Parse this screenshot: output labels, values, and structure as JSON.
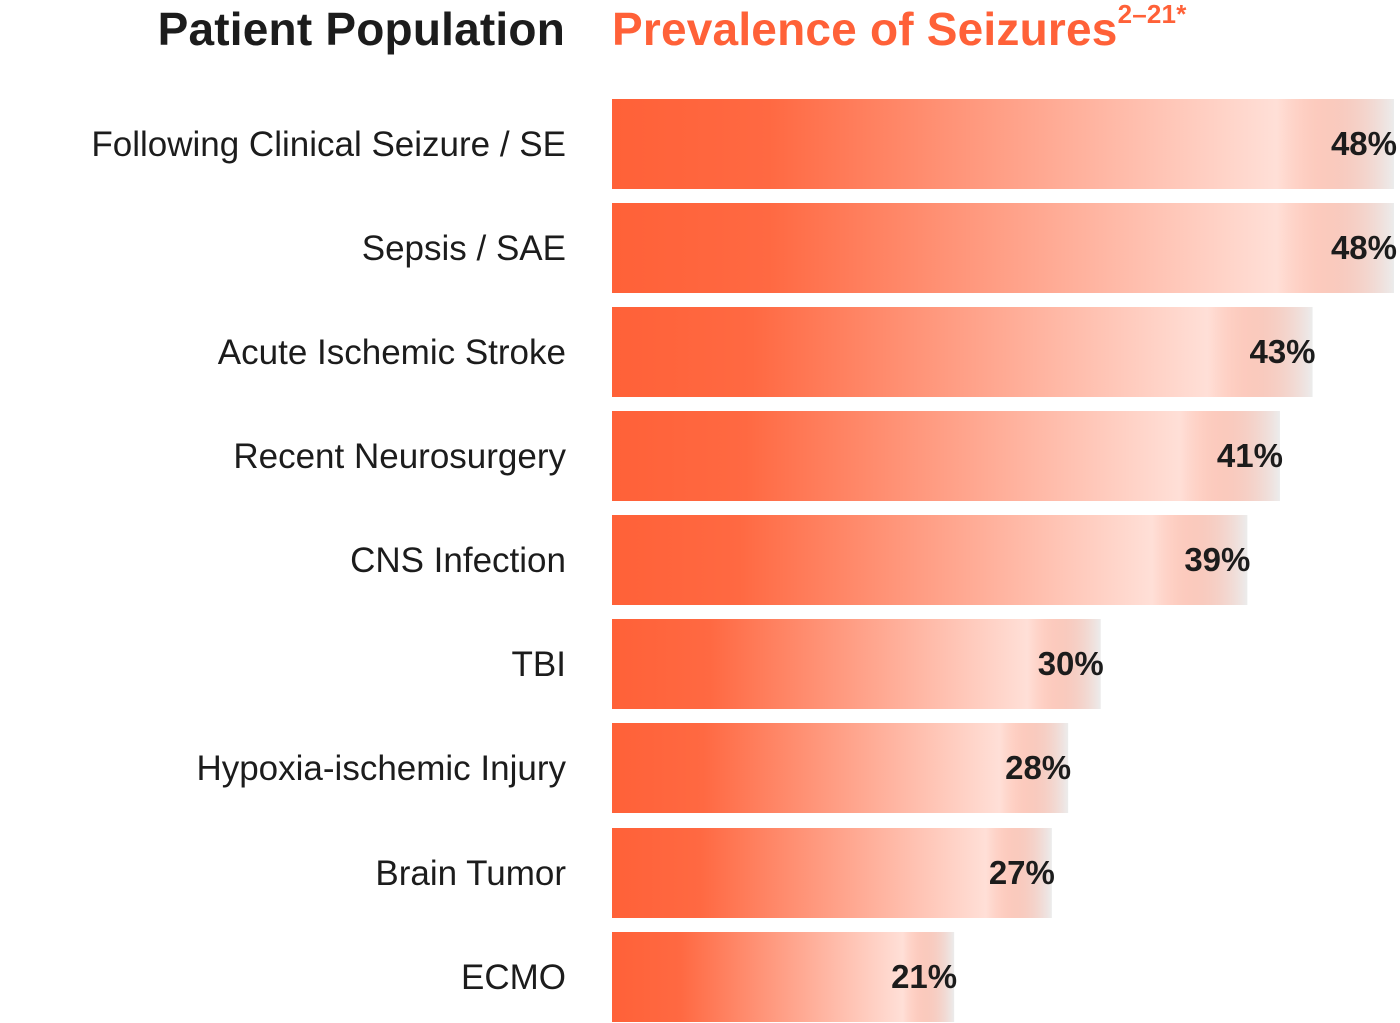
{
  "colors": {
    "accent": "#ff6138",
    "text": "#1c1c1c"
  },
  "header": {
    "left_title": "Patient Population",
    "right_title": "Prevalence of Seizures",
    "right_sup": "2–21*"
  },
  "chart_data": {
    "type": "bar",
    "orientation": "horizontal",
    "categories": [
      "Following Clinical Seizure / SE",
      "Sepsis / SAE",
      "Acute Ischemic Stroke",
      "Recent Neurosurgery",
      "CNS Infection",
      "TBI",
      "Hypoxia-ischemic Injury",
      "Brain Tumor",
      "ECMO"
    ],
    "values": [
      48,
      48,
      43,
      41,
      39,
      30,
      28,
      27,
      21
    ],
    "value_labels": [
      "48%",
      "48%",
      "43%",
      "41%",
      "39%",
      "30%",
      "28%",
      "27%",
      "21%"
    ],
    "xlim": [
      0,
      48
    ],
    "grid": false,
    "legend": "none"
  }
}
